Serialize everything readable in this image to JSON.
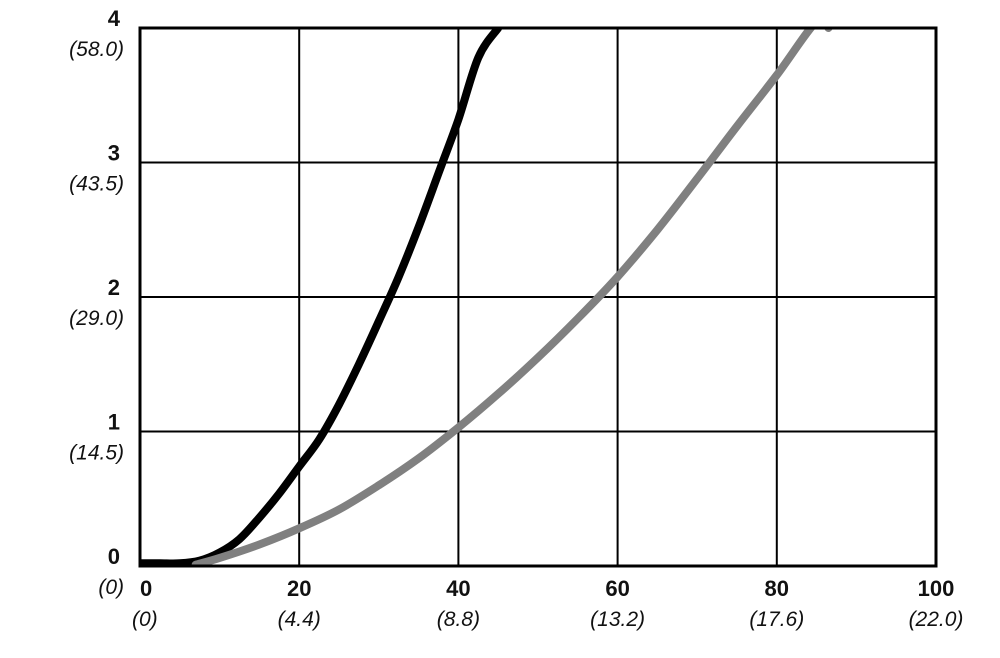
{
  "chart_data": {
    "type": "line",
    "title": "",
    "xlabel": "",
    "ylabel": "",
    "xlim": [
      0,
      100
    ],
    "ylim": [
      0,
      4
    ],
    "grid": true,
    "x_ticks": [
      {
        "value": 0,
        "label": "0",
        "sub_label": "(0)"
      },
      {
        "value": 20,
        "label": "20",
        "sub_label": "(4.4)"
      },
      {
        "value": 40,
        "label": "40",
        "sub_label": "(8.8)"
      },
      {
        "value": 60,
        "label": "60",
        "sub_label": "(13.2)"
      },
      {
        "value": 80,
        "label": "80",
        "sub_label": "(17.6)"
      },
      {
        "value": 100,
        "label": "100",
        "sub_label": "(22.0)"
      }
    ],
    "y_ticks": [
      {
        "value": 0,
        "label": "0",
        "sub_label": "(0)"
      },
      {
        "value": 1,
        "label": "1",
        "sub_label": "(14.5)"
      },
      {
        "value": 2,
        "label": "2",
        "sub_label": "(29.0)"
      },
      {
        "value": 3,
        "label": "3",
        "sub_label": "(43.5)"
      },
      {
        "value": 4,
        "label": "4",
        "sub_label": "(58.0)"
      }
    ],
    "series": [
      {
        "color": "#000000",
        "x": [
          0,
          2.5,
          5,
          7.5,
          10,
          12.5,
          15,
          17.5,
          20,
          22.5,
          25,
          27.5,
          30,
          32.5,
          35,
          37.5,
          40,
          42.5,
          45
        ],
        "y": [
          0.02,
          0.02,
          0.02,
          0.04,
          0.1,
          0.2,
          0.36,
          0.54,
          0.74,
          0.94,
          1.2,
          1.5,
          1.82,
          2.15,
          2.52,
          2.92,
          3.32,
          3.78,
          4.0
        ]
      },
      {
        "color": "#808080",
        "x": [
          7,
          10,
          15,
          20,
          25,
          30,
          35,
          40,
          45,
          50,
          55,
          60,
          65,
          70,
          75,
          80,
          85,
          86.5
        ],
        "y": [
          0.01,
          0.06,
          0.16,
          0.28,
          0.42,
          0.6,
          0.8,
          1.03,
          1.28,
          1.55,
          1.84,
          2.15,
          2.5,
          2.88,
          3.27,
          3.65,
          4.05,
          4.0
        ]
      }
    ]
  }
}
